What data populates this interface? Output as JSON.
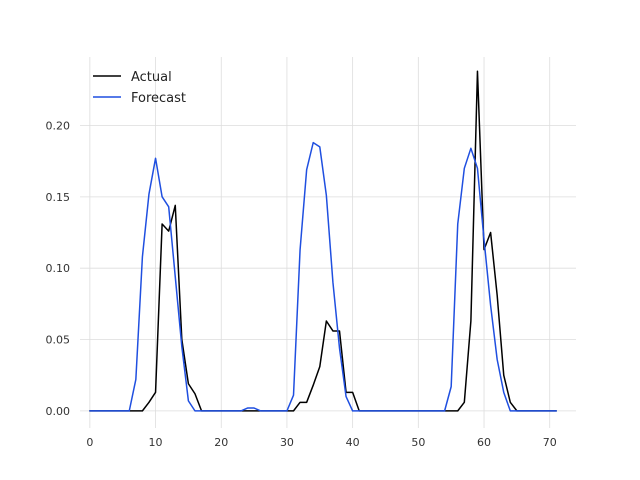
{
  "chart_data": {
    "type": "line",
    "title": "",
    "xlabel": "",
    "ylabel": "",
    "xlim": [
      -1.5,
      74
    ],
    "ylim": [
      -0.012,
      0.248
    ],
    "x_ticks": [
      0,
      10,
      20,
      30,
      40,
      50,
      60,
      70
    ],
    "y_ticks": [
      0.0,
      0.05,
      0.1,
      0.15,
      0.2
    ],
    "x_tick_labels": [
      "0",
      "10",
      "20",
      "30",
      "40",
      "50",
      "60",
      "70"
    ],
    "y_tick_labels": [
      "0.00",
      "0.05",
      "0.10",
      "0.15",
      "0.20"
    ],
    "grid": true,
    "legend_position": "top-left",
    "series": [
      {
        "name": "Actual",
        "color": "#000000",
        "x": [
          0,
          1,
          2,
          3,
          4,
          5,
          6,
          7,
          8,
          9,
          10,
          11,
          12,
          13,
          14,
          15,
          16,
          17,
          18,
          19,
          20,
          21,
          22,
          23,
          24,
          25,
          26,
          27,
          28,
          29,
          30,
          31,
          32,
          33,
          34,
          35,
          36,
          37,
          38,
          39,
          40,
          41,
          42,
          43,
          44,
          45,
          46,
          47,
          48,
          49,
          50,
          51,
          52,
          53,
          54,
          55,
          56,
          57,
          58,
          59,
          60,
          61,
          62,
          63,
          64,
          65,
          66,
          67,
          68,
          69,
          70,
          71
        ],
        "values": [
          0,
          0,
          0,
          0,
          0,
          0,
          0,
          0,
          0,
          0.006,
          0.013,
          0.131,
          0.126,
          0.144,
          0.05,
          0.019,
          0.012,
          0,
          0,
          0,
          0,
          0,
          0,
          0,
          0,
          0,
          0,
          0,
          0,
          0,
          0,
          0,
          0.006,
          0.006,
          0.018,
          0.031,
          0.063,
          0.056,
          0.056,
          0.013,
          0.013,
          0,
          0,
          0,
          0,
          0,
          0,
          0,
          0,
          0,
          0,
          0,
          0,
          0,
          0,
          0,
          0,
          0.006,
          0.063,
          0.238,
          0.113,
          0.125,
          0.081,
          0.025,
          0.006,
          0,
          0,
          0,
          0,
          0,
          0,
          0
        ]
      },
      {
        "name": "Forecast",
        "color": "#1f4fe0",
        "x": [
          0,
          1,
          2,
          3,
          4,
          5,
          6,
          7,
          8,
          9,
          10,
          11,
          12,
          13,
          14,
          15,
          16,
          17,
          18,
          19,
          20,
          21,
          22,
          23,
          24,
          25,
          26,
          27,
          28,
          29,
          30,
          31,
          32,
          33,
          34,
          35,
          36,
          37,
          38,
          39,
          40,
          41,
          42,
          43,
          44,
          45,
          46,
          47,
          48,
          49,
          50,
          51,
          52,
          53,
          54,
          55,
          56,
          57,
          58,
          59,
          60,
          61,
          62,
          63,
          64,
          65,
          66,
          67,
          68,
          69,
          70,
          71
        ],
        "values": [
          0,
          0,
          0,
          0,
          0,
          0,
          0,
          0.022,
          0.108,
          0.152,
          0.177,
          0.15,
          0.143,
          0.094,
          0.045,
          0.007,
          0,
          0,
          0,
          0,
          0,
          0,
          0,
          0,
          0.002,
          0.002,
          0,
          0,
          0,
          0,
          0,
          0.011,
          0.113,
          0.169,
          0.188,
          0.185,
          0.151,
          0.09,
          0.044,
          0.01,
          0,
          0,
          0,
          0,
          0,
          0,
          0,
          0,
          0,
          0,
          0,
          0,
          0,
          0,
          0,
          0.017,
          0.131,
          0.17,
          0.184,
          0.17,
          0.12,
          0.074,
          0.036,
          0.013,
          0,
          0,
          0,
          0,
          0,
          0,
          0,
          0
        ]
      }
    ]
  }
}
